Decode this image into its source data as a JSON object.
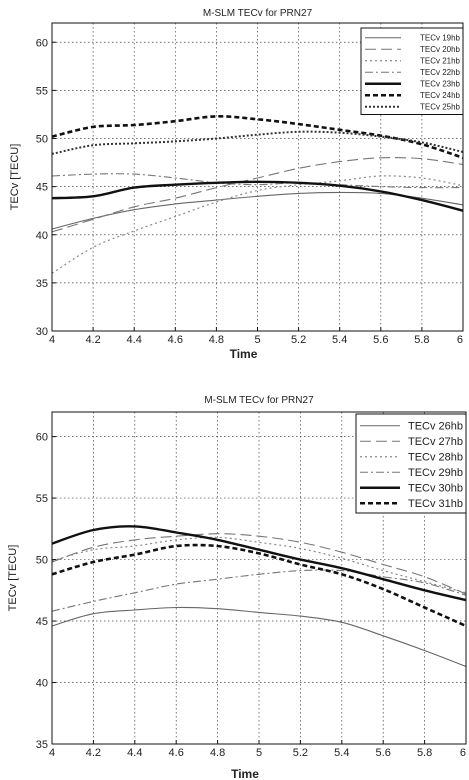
{
  "chart_data": [
    {
      "type": "line",
      "title": "M-SLM TECv  for  PRN27",
      "xlabel": "Time",
      "ylabel": "TECv  [TECU]",
      "xlim": [
        4,
        6
      ],
      "ylim": [
        30,
        62
      ],
      "xticks": [
        "4",
        "4.2",
        "4.4",
        "4.6",
        "4.8",
        "5",
        "5.2",
        "5.4",
        "5.6",
        "5.8",
        "6"
      ],
      "yticks": [
        "30",
        "35",
        "40",
        "45",
        "50",
        "55",
        "60"
      ],
      "grid": true,
      "legend_position": "top-right",
      "x": [
        4.0,
        4.2,
        4.4,
        4.6,
        4.8,
        5.0,
        5.2,
        5.4,
        5.6,
        5.8,
        6.0
      ],
      "series": [
        {
          "name": "TECv 19hb",
          "style": "solid-thin",
          "values": [
            40.6,
            41.7,
            42.6,
            43.2,
            43.6,
            44.0,
            44.3,
            44.4,
            44.3,
            43.8,
            43.1
          ]
        },
        {
          "name": "TECv 20hb",
          "style": "longdash",
          "values": [
            40.3,
            41.6,
            42.9,
            43.8,
            44.9,
            45.9,
            46.9,
            47.6,
            48.0,
            47.9,
            47.3
          ]
        },
        {
          "name": "TECv 21hb",
          "style": "dotted",
          "values": [
            36.0,
            38.7,
            40.4,
            41.9,
            43.4,
            44.6,
            45.2,
            45.6,
            46.1,
            45.9,
            45.1
          ]
        },
        {
          "name": "TECv 22hb",
          "style": "dashdot",
          "values": [
            46.1,
            46.3,
            46.3,
            45.9,
            45.4,
            45.2,
            45.4,
            45.2,
            45.0,
            44.9,
            44.9
          ]
        },
        {
          "name": "TECv 23hb",
          "style": "solid-thick",
          "values": [
            43.8,
            44.0,
            44.9,
            45.2,
            45.4,
            45.5,
            45.4,
            45.1,
            44.5,
            43.6,
            42.5
          ]
        },
        {
          "name": "TECv 24hb",
          "style": "dashed-thick",
          "values": [
            50.2,
            51.2,
            51.4,
            51.8,
            52.3,
            52.0,
            51.5,
            50.9,
            50.3,
            49.4,
            48.0
          ]
        },
        {
          "name": "TECv 25hb",
          "style": "dotted-thick",
          "values": [
            48.4,
            49.3,
            49.5,
            49.7,
            50.0,
            50.4,
            50.7,
            50.6,
            50.2,
            49.6,
            48.6
          ]
        }
      ]
    },
    {
      "type": "line",
      "title": "M-SLM TECv for  PRN27",
      "xlabel": "Time",
      "ylabel": "TECv  [TECU]",
      "xlim": [
        4,
        6
      ],
      "ylim": [
        35,
        62
      ],
      "xticks": [
        "4",
        "4.2",
        "4.4",
        "4.6",
        "4.8",
        "5",
        "5.2",
        "5.4",
        "5.6",
        "5.8",
        "6"
      ],
      "yticks": [
        "35",
        "40",
        "45",
        "50",
        "55",
        "60"
      ],
      "grid": true,
      "legend_position": "top-right",
      "x": [
        4.0,
        4.2,
        4.4,
        4.6,
        4.8,
        5.0,
        5.2,
        5.4,
        5.6,
        5.8,
        6.0
      ],
      "series": [
        {
          "name": "TECv 26hb",
          "style": "solid-thin",
          "values": [
            44.6,
            45.6,
            45.9,
            46.1,
            46.0,
            45.7,
            45.4,
            44.9,
            43.8,
            42.6,
            41.3
          ]
        },
        {
          "name": "TECv 27hb",
          "style": "longdash",
          "values": [
            49.8,
            51.0,
            51.6,
            51.9,
            52.1,
            51.9,
            51.4,
            50.6,
            49.6,
            48.6,
            47.2
          ]
        },
        {
          "name": "TECv 28hb",
          "style": "dotted",
          "values": [
            49.9,
            50.8,
            51.1,
            51.6,
            51.8,
            51.4,
            50.9,
            50.1,
            49.1,
            48.2,
            47.3
          ]
        },
        {
          "name": "TECv 29hb",
          "style": "dashdot",
          "values": [
            45.8,
            46.6,
            47.3,
            48.0,
            48.4,
            48.8,
            49.1,
            49.1,
            48.6,
            48.1,
            47.1
          ]
        },
        {
          "name": "TECv 30hb",
          "style": "solid-thick",
          "values": [
            51.3,
            52.4,
            52.7,
            52.2,
            51.6,
            50.8,
            50.0,
            49.3,
            48.4,
            47.5,
            46.7
          ]
        },
        {
          "name": "TECv 31hb",
          "style": "dashed-thick",
          "values": [
            48.8,
            49.8,
            50.4,
            51.1,
            51.1,
            50.5,
            49.6,
            48.8,
            47.6,
            46.1,
            44.6
          ]
        }
      ]
    }
  ]
}
